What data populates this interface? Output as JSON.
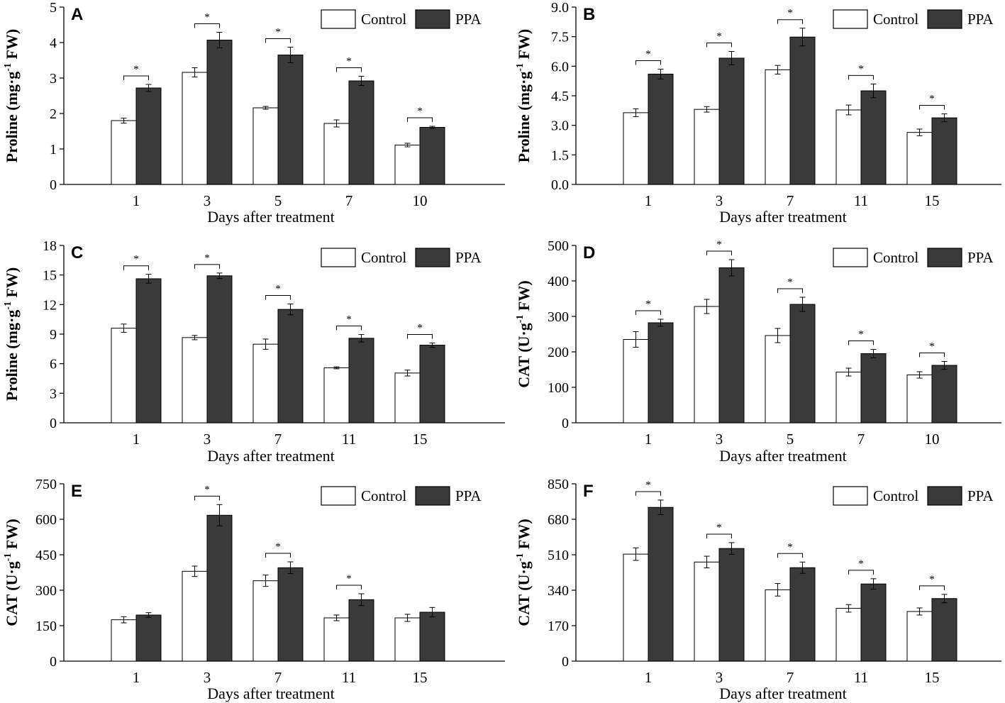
{
  "colors": {
    "control": "#ffffff",
    "ppa": "#3a3a3a",
    "stroke": "#000000"
  },
  "legend": {
    "control": "Control",
    "ppa": "PPA"
  },
  "significance_marker": "*",
  "chart_data": [
    {
      "panel": "A",
      "type": "bar",
      "ylabel": "Proline (mg·g",
      "ylabel_sup": "-1",
      "ylabel_tail": " FW)",
      "xlabel": "Days after treatment",
      "ylim": [
        0,
        5
      ],
      "yticks": [
        "0",
        "1",
        "2",
        "3",
        "4",
        "5"
      ],
      "categories": [
        "1",
        "3",
        "5",
        "7",
        "10"
      ],
      "series": [
        {
          "name": "Control",
          "values": [
            1.8,
            3.16,
            2.16,
            1.72,
            1.11
          ],
          "errors": [
            0.07,
            0.13,
            0.04,
            0.1,
            0.05
          ]
        },
        {
          "name": "PPA",
          "values": [
            2.72,
            4.07,
            3.65,
            2.92,
            1.61
          ],
          "errors": [
            0.1,
            0.22,
            0.22,
            0.13,
            0.03
          ]
        }
      ],
      "significant": [
        true,
        true,
        true,
        true,
        true
      ]
    },
    {
      "panel": "B",
      "type": "bar",
      "ylabel": "Proline (mg·g",
      "ylabel_sup": "-1",
      "ylabel_tail": " FW)",
      "xlabel": "Days after treatment",
      "ylim": [
        0,
        9
      ],
      "yticks": [
        "0.0",
        "1.5",
        "3.0",
        "4.5",
        "6.0",
        "7.5",
        "9.0"
      ],
      "categories": [
        "1",
        "3",
        "7",
        "11",
        "15"
      ],
      "series": [
        {
          "name": "Control",
          "values": [
            3.64,
            3.81,
            5.82,
            3.78,
            2.64
          ],
          "errors": [
            0.2,
            0.14,
            0.22,
            0.25,
            0.17
          ]
        },
        {
          "name": "PPA",
          "values": [
            5.6,
            6.41,
            7.48,
            4.75,
            3.38
          ],
          "errors": [
            0.25,
            0.34,
            0.45,
            0.35,
            0.2
          ]
        }
      ],
      "significant": [
        true,
        true,
        true,
        true,
        true
      ]
    },
    {
      "panel": "C",
      "type": "bar",
      "ylabel": "Proline (mg·g",
      "ylabel_sup": "-1",
      "ylabel_tail": " FW)",
      "xlabel": "Days after treatment",
      "ylim": [
        0,
        18
      ],
      "yticks": [
        "0",
        "3",
        "6",
        "9",
        "12",
        "15",
        "18"
      ],
      "categories": [
        "1",
        "3",
        "7",
        "11",
        "15"
      ],
      "series": [
        {
          "name": "Control",
          "values": [
            9.6,
            8.65,
            7.98,
            5.58,
            5.05
          ],
          "errors": [
            0.42,
            0.22,
            0.52,
            0.1,
            0.3
          ]
        },
        {
          "name": "PPA",
          "values": [
            14.62,
            14.92,
            11.51,
            8.58,
            7.88
          ],
          "errors": [
            0.45,
            0.28,
            0.55,
            0.38,
            0.22
          ]
        }
      ],
      "significant": [
        true,
        true,
        true,
        true,
        true
      ]
    },
    {
      "panel": "D",
      "type": "bar",
      "ylabel": "CAT (U·g",
      "ylabel_sup": "-1",
      "ylabel_tail": " FW)",
      "xlabel": "Days after treatment",
      "ylim": [
        0,
        500
      ],
      "yticks": [
        "0",
        "100",
        "200",
        "300",
        "400",
        "500"
      ],
      "categories": [
        "1",
        "3",
        "5",
        "7",
        "10"
      ],
      "series": [
        {
          "name": "Control",
          "values": [
            235,
            328,
            246,
            143,
            135
          ],
          "errors": [
            22,
            20,
            20,
            11,
            9
          ]
        },
        {
          "name": "PPA",
          "values": [
            282,
            437,
            334,
            195,
            162
          ],
          "errors": [
            10,
            23,
            20,
            12,
            11
          ]
        }
      ],
      "significant": [
        true,
        true,
        true,
        true,
        true
      ]
    },
    {
      "panel": "E",
      "type": "bar",
      "ylabel": "CAT (U·g",
      "ylabel_sup": "-1",
      "ylabel_tail": " FW)",
      "xlabel": "Days after treatment",
      "ylim": [
        0,
        750
      ],
      "yticks": [
        "0",
        "150",
        "300",
        "450",
        "600",
        "750"
      ],
      "categories": [
        "1",
        "3",
        "7",
        "11",
        "15"
      ],
      "series": [
        {
          "name": "Control",
          "values": [
            175,
            380,
            340,
            183,
            183
          ],
          "errors": [
            13,
            22,
            24,
            12,
            15
          ]
        },
        {
          "name": "PPA",
          "values": [
            195,
            617,
            395,
            260,
            207
          ],
          "errors": [
            10,
            45,
            25,
            25,
            20
          ]
        }
      ],
      "significant": [
        false,
        true,
        true,
        true,
        false
      ]
    },
    {
      "panel": "F",
      "type": "bar",
      "ylabel": "CAT (U·g",
      "ylabel_sup": "-1",
      "ylabel_tail": " FW)",
      "xlabel": "Days after treatment",
      "ylim": [
        0,
        850
      ],
      "yticks": [
        "0",
        "170",
        "340",
        "510",
        "680",
        "850"
      ],
      "categories": [
        "1",
        "3",
        "7",
        "11",
        "15"
      ],
      "series": [
        {
          "name": "Control",
          "values": [
            513,
            475,
            342,
            253,
            238
          ],
          "errors": [
            30,
            28,
            30,
            18,
            17
          ]
        },
        {
          "name": "PPA",
          "values": [
            737,
            540,
            448,
            370,
            300
          ],
          "errors": [
            35,
            28,
            27,
            25,
            20
          ]
        }
      ],
      "significant": [
        true,
        true,
        true,
        true,
        true
      ]
    }
  ]
}
